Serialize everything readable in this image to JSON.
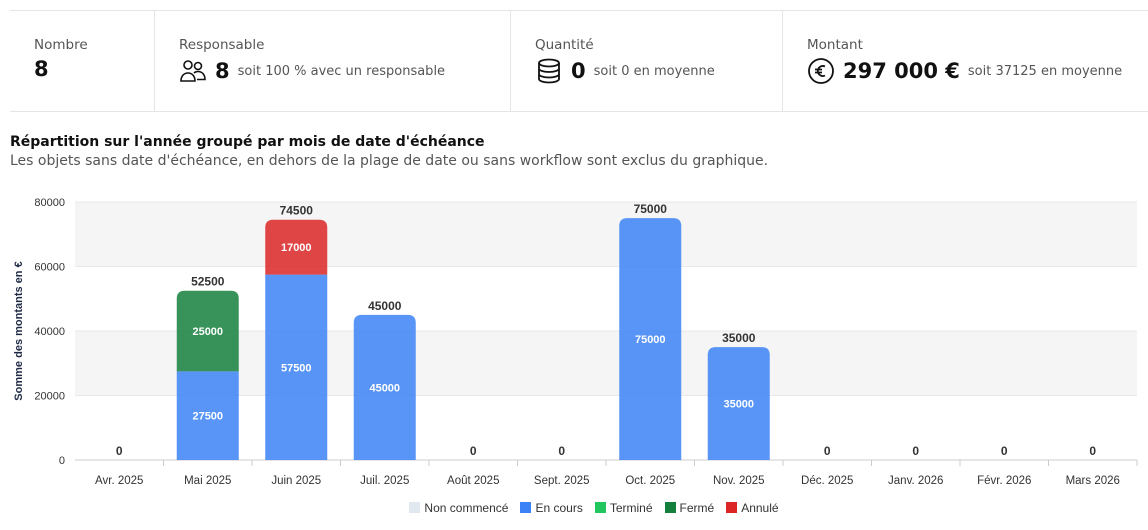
{
  "stats": {
    "nombre": {
      "label": "Nombre",
      "value": "8"
    },
    "responsable": {
      "label": "Responsable",
      "value": "8",
      "sub": "soit 100 % avec un responsable",
      "icon": "users-icon"
    },
    "quantite": {
      "label": "Quantité",
      "value": "0",
      "sub": "soit 0 en moyenne",
      "icon": "database-icon"
    },
    "montant": {
      "label": "Montant",
      "value": "297 000 €",
      "sub": "soit 37125 en moyenne",
      "icon": "euro-icon"
    }
  },
  "chart_title": "Répartition sur l'année groupé par mois de date d'échéance",
  "chart_desc": "Les objets sans date d'échéance, en dehors de la plage de date ou sans workflow sont exclus du graphique.",
  "chart_data": {
    "type": "bar",
    "stacked": true,
    "ylabel": "Somme des montants en €",
    "ylim": [
      0,
      80000
    ],
    "yticks": [
      0,
      20000,
      40000,
      60000,
      80000
    ],
    "categories": [
      "Avr. 2025",
      "Mai 2025",
      "Juin 2025",
      "Juil. 2025",
      "Août 2025",
      "Sept. 2025",
      "Oct. 2025",
      "Nov. 2025",
      "Déc. 2025",
      "Janv. 2026",
      "Févr. 2026",
      "Mars 2026"
    ],
    "series": [
      {
        "name": "Non commencé",
        "color": "#e2e8f0",
        "values": [
          0,
          0,
          0,
          0,
          0,
          0,
          0,
          0,
          0,
          0,
          0,
          0
        ]
      },
      {
        "name": "En cours",
        "color": "#3b82f6",
        "values": [
          0,
          27500,
          57500,
          45000,
          0,
          0,
          75000,
          35000,
          0,
          0,
          0,
          0
        ]
      },
      {
        "name": "Terminé",
        "color": "#22c55e",
        "values": [
          0,
          0,
          0,
          0,
          0,
          0,
          0,
          0,
          0,
          0,
          0,
          0
        ]
      },
      {
        "name": "Fermé",
        "color": "#15803d",
        "values": [
          0,
          25000,
          0,
          0,
          0,
          0,
          0,
          0,
          0,
          0,
          0,
          0
        ]
      },
      {
        "name": "Annulé",
        "color": "#dc2626",
        "values": [
          0,
          0,
          17000,
          0,
          0,
          0,
          0,
          0,
          0,
          0,
          0,
          0
        ]
      }
    ],
    "totals": [
      0,
      52500,
      74500,
      45000,
      0,
      0,
      75000,
      35000,
      0,
      0,
      0,
      0
    ],
    "legend_position": "bottom"
  }
}
